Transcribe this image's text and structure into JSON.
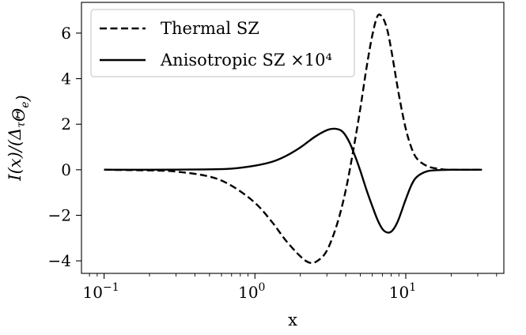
{
  "chart_data": {
    "type": "line",
    "xlabel": "x",
    "ylabel": "I(x)/(Δ_τ Θ_e)",
    "xscale": "log",
    "xlim": [
      0.0708,
      44.7
    ],
    "ylim": [
      -4.55,
      7.35
    ],
    "x_ticks": [
      {
        "value": 0.1,
        "label_base": "10",
        "label_exp": "−1"
      },
      {
        "value": 1,
        "label_base": "10",
        "label_exp": "0"
      },
      {
        "value": 10,
        "label_base": "10",
        "label_exp": "1"
      }
    ],
    "y_ticks": [
      {
        "value": -4,
        "label": "−4"
      },
      {
        "value": -2,
        "label": "−2"
      },
      {
        "value": 0,
        "label": "0"
      },
      {
        "value": 2,
        "label": "2"
      },
      {
        "value": 4,
        "label": "4"
      },
      {
        "value": 6,
        "label": "6"
      }
    ],
    "grid": false,
    "legend_position": "top-left",
    "series": [
      {
        "name": "Thermal SZ",
        "style": "dashed",
        "color": "#000000",
        "points": [
          [
            0.1,
            0.0
          ],
          [
            0.2,
            -0.03
          ],
          [
            0.3,
            -0.08
          ],
          [
            0.5,
            -0.3
          ],
          [
            0.7,
            -0.7
          ],
          [
            1.0,
            -1.45
          ],
          [
            1.3,
            -2.3
          ],
          [
            1.6,
            -3.1
          ],
          [
            2.0,
            -3.8
          ],
          [
            2.3,
            -4.08
          ],
          [
            2.6,
            -4.0
          ],
          [
            3.0,
            -3.55
          ],
          [
            3.5,
            -2.4
          ],
          [
            4.0,
            -0.9
          ],
          [
            4.5,
            0.9
          ],
          [
            5.0,
            2.7
          ],
          [
            5.5,
            4.5
          ],
          [
            6.0,
            5.9
          ],
          [
            6.5,
            6.75
          ],
          [
            7.0,
            6.7
          ],
          [
            7.5,
            6.2
          ],
          [
            8.0,
            5.3
          ],
          [
            9.0,
            3.3
          ],
          [
            10.0,
            1.8
          ],
          [
            11.0,
            0.9
          ],
          [
            12.0,
            0.45
          ],
          [
            14.0,
            0.15
          ],
          [
            17.0,
            0.03
          ],
          [
            20.0,
            0.0
          ],
          [
            32.0,
            0.0
          ]
        ]
      },
      {
        "name": "Anisotropic SZ ×10⁴",
        "style": "solid",
        "color": "#000000",
        "points": [
          [
            0.1,
            0.0
          ],
          [
            0.3,
            0.005
          ],
          [
            0.5,
            0.02
          ],
          [
            0.7,
            0.05
          ],
          [
            1.0,
            0.18
          ],
          [
            1.3,
            0.35
          ],
          [
            1.6,
            0.6
          ],
          [
            2.0,
            0.98
          ],
          [
            2.5,
            1.45
          ],
          [
            3.0,
            1.74
          ],
          [
            3.4,
            1.8
          ],
          [
            3.8,
            1.68
          ],
          [
            4.2,
            1.25
          ],
          [
            4.6,
            0.62
          ],
          [
            5.0,
            -0.05
          ],
          [
            5.5,
            -0.9
          ],
          [
            6.0,
            -1.6
          ],
          [
            6.5,
            -2.2
          ],
          [
            7.0,
            -2.6
          ],
          [
            7.5,
            -2.75
          ],
          [
            8.0,
            -2.72
          ],
          [
            8.5,
            -2.5
          ],
          [
            9.0,
            -2.15
          ],
          [
            10.0,
            -1.3
          ],
          [
            11.0,
            -0.62
          ],
          [
            12.0,
            -0.28
          ],
          [
            14.0,
            -0.06
          ],
          [
            17.0,
            -0.01
          ],
          [
            20.0,
            0.0
          ],
          [
            32.0,
            0.0
          ]
        ]
      }
    ]
  }
}
